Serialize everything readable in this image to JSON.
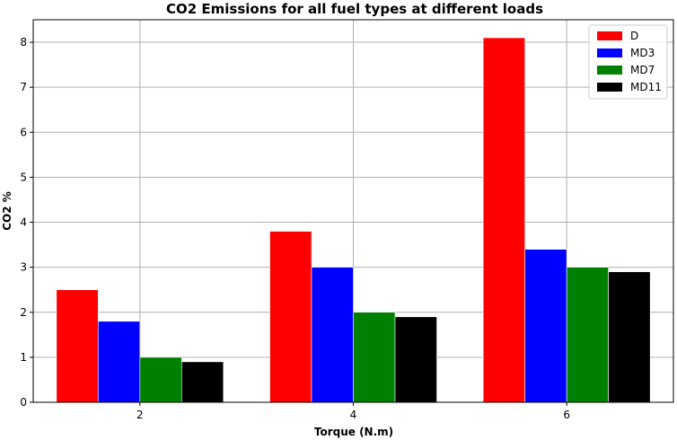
{
  "chart_data": {
    "type": "bar",
    "title": "CO2 Emissions for all fuel types at different loads",
    "xlabel": "Torque (N.m)",
    "ylabel": "CO2 %",
    "categories": [
      "2",
      "4",
      "6"
    ],
    "series": [
      {
        "name": "D",
        "color": "#ff0000",
        "values": [
          2.5,
          3.8,
          8.1
        ]
      },
      {
        "name": "MD3",
        "color": "#0000ff",
        "values": [
          1.8,
          3.0,
          3.4
        ]
      },
      {
        "name": "MD7",
        "color": "#008000",
        "values": [
          1.0,
          2.0,
          3.0
        ]
      },
      {
        "name": "MD11",
        "color": "#000000",
        "values": [
          0.9,
          1.9,
          2.9
        ]
      }
    ],
    "ylim": [
      0,
      8.5
    ],
    "yticks": [
      "0",
      "1",
      "2",
      "3",
      "4",
      "5",
      "6",
      "7",
      "8"
    ],
    "grid": true,
    "legend_position": "top-right"
  }
}
